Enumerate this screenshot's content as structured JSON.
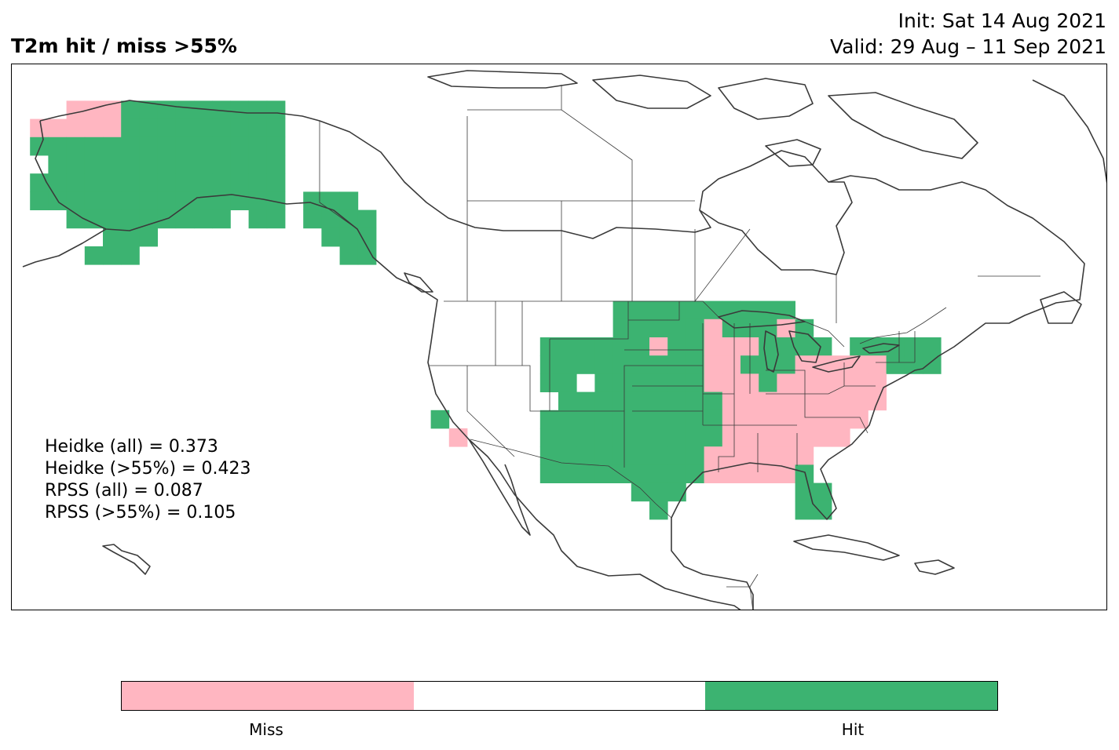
{
  "title": "T2m hit / miss  >55%",
  "init_text": "Init: Sat 14 Aug 2021",
  "valid_text": "Valid: 29 Aug – 11 Sep 2021",
  "stats": [
    "Heidke (all) = 0.373",
    "Heidke (>55%) = 0.423",
    "RPSS (all) = 0.087",
    "RPSS (>55%) = 0.105"
  ],
  "colors": {
    "miss": "#ffb6c1",
    "hit": "#3cb371",
    "neutral": "#ffffff",
    "coast": "#3a3a3a"
  },
  "colorbar": {
    "labels": [
      "Miss",
      "Hit"
    ]
  }
}
